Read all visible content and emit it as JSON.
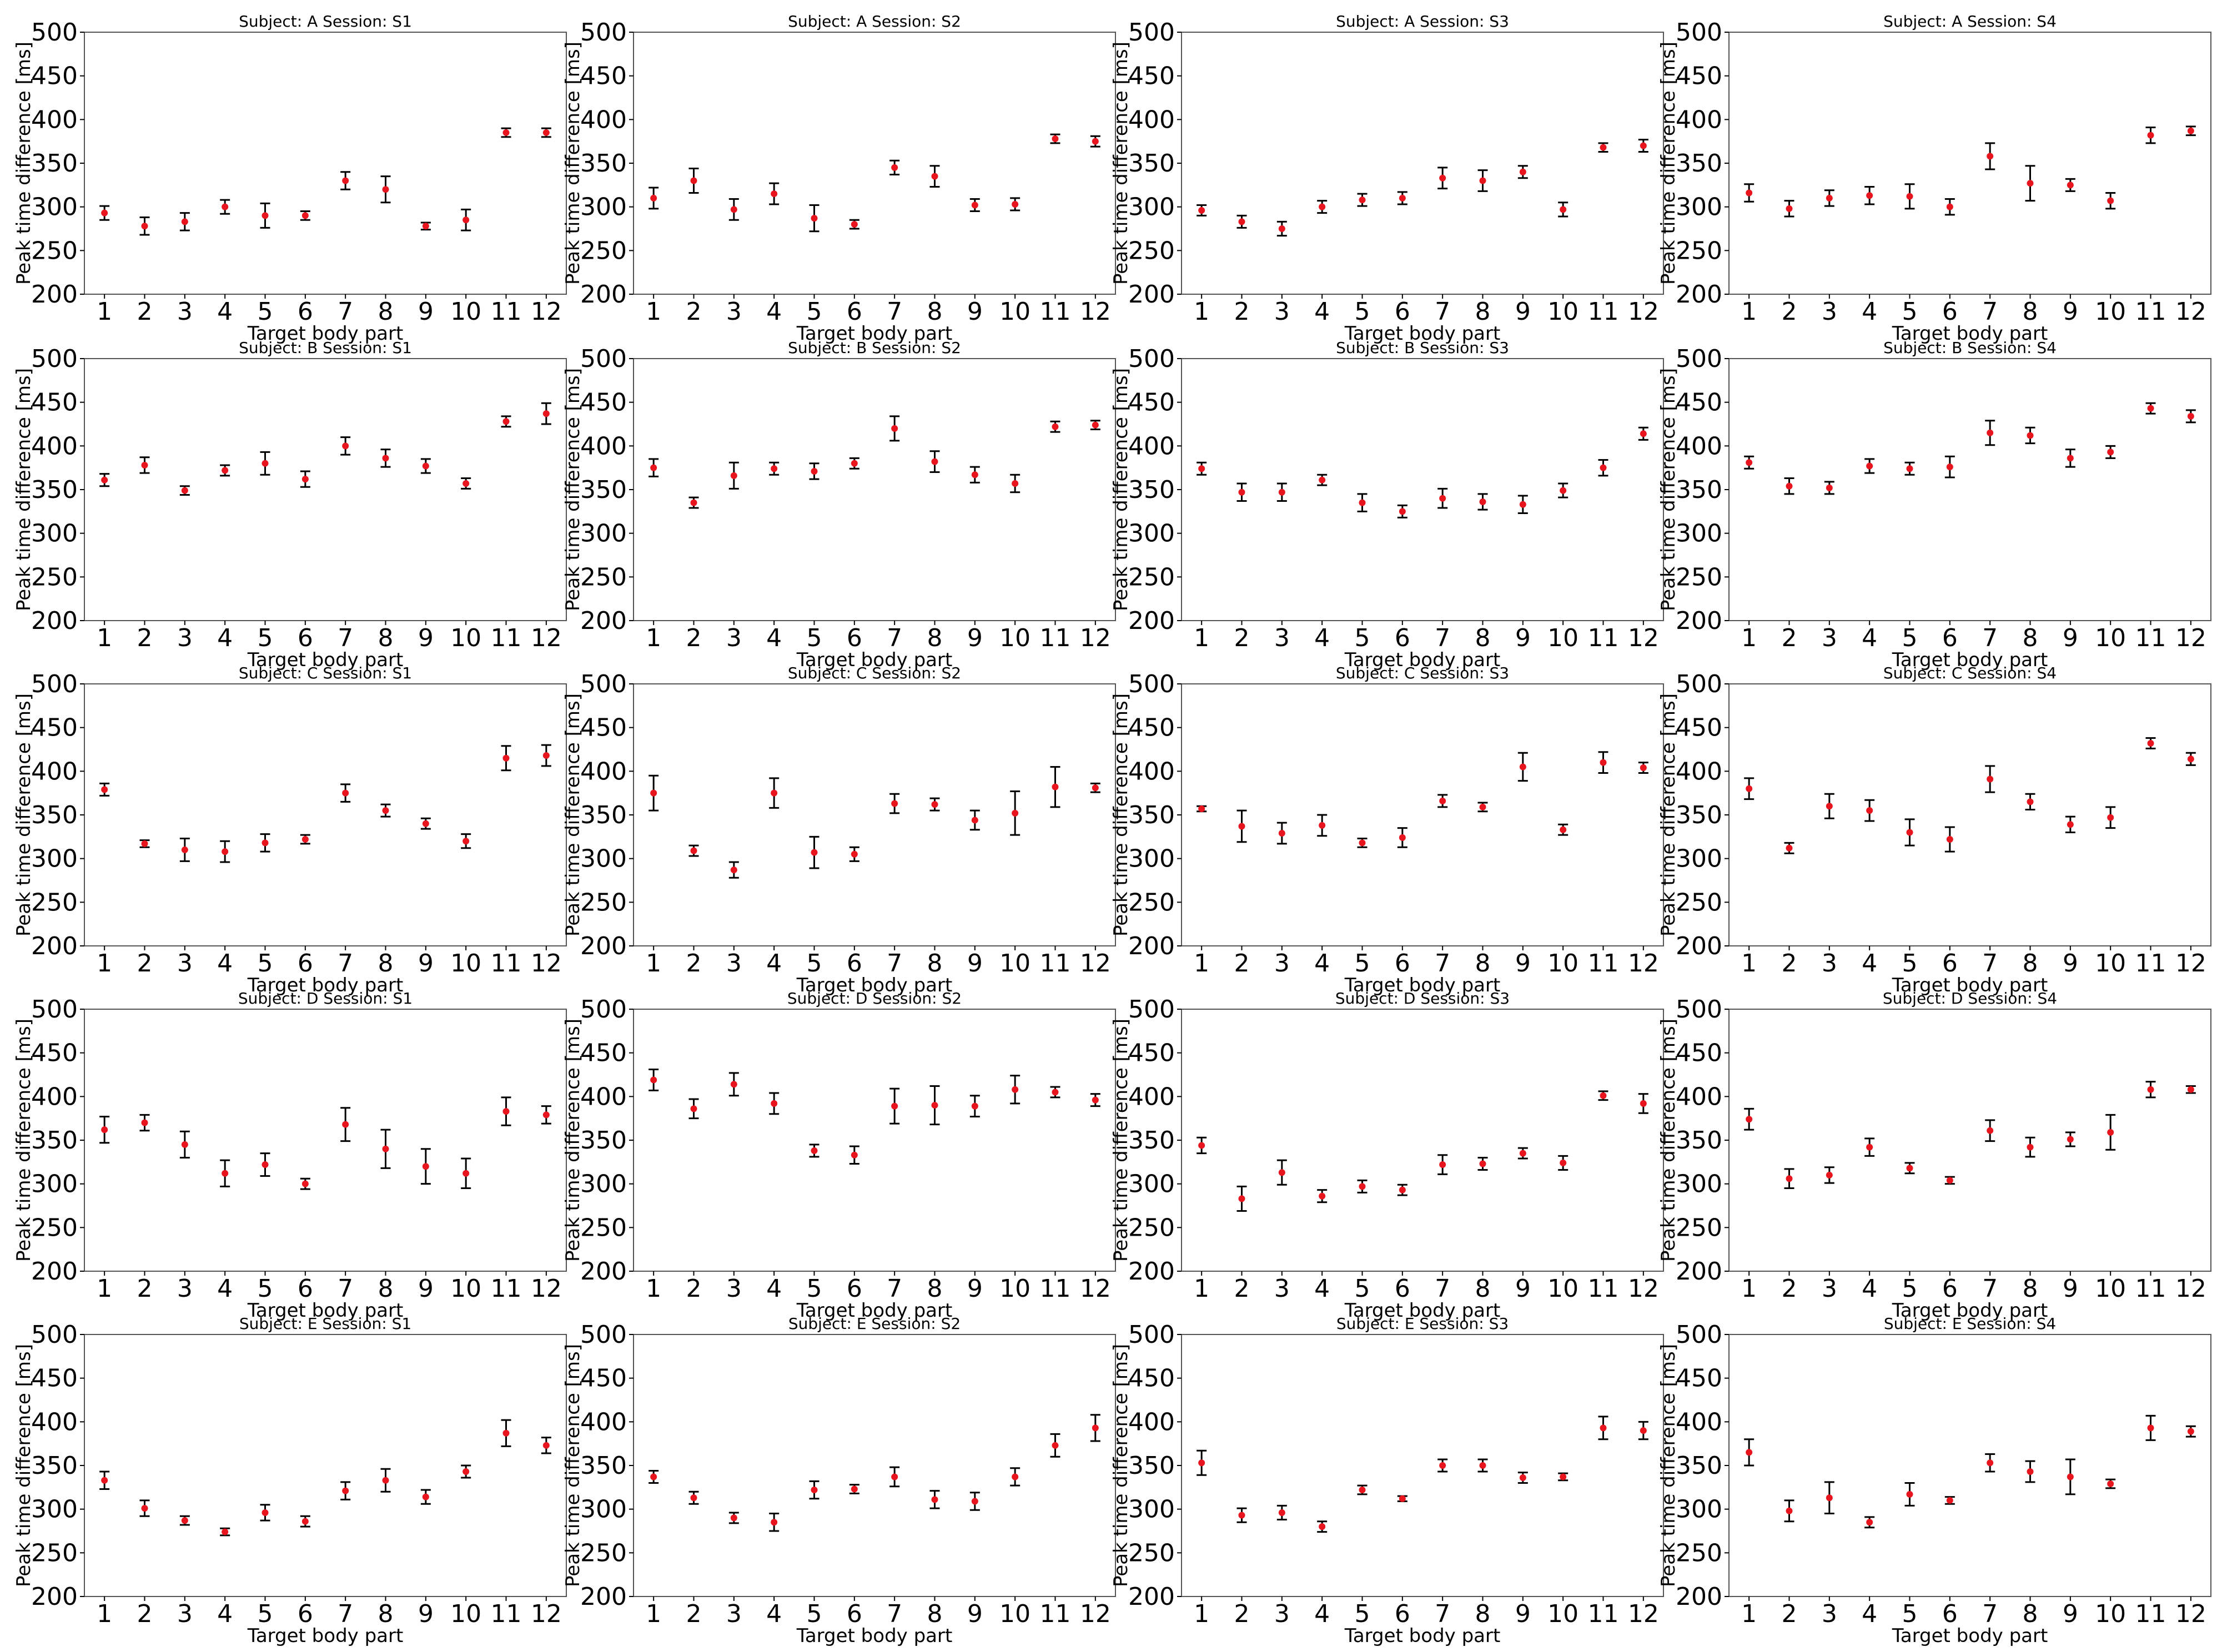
{
  "chart_data": {
    "type": "scatter",
    "x_label": "Target body part",
    "y_label": "Peak time difference [ms]",
    "x_ticks": [
      "1",
      "2",
      "3",
      "4",
      "5",
      "6",
      "7",
      "8",
      "9",
      "10",
      "11",
      "12"
    ],
    "y_ticks": [
      200,
      250,
      300,
      350,
      400,
      450,
      500
    ],
    "y_lim": [
      200,
      500
    ],
    "title_format": "Subject: {subject}  Session: {session}",
    "marker_color": "#e8141e",
    "errorbar_color": "#000000",
    "panels": [
      {
        "subject": "A",
        "session": "S1",
        "values": [
          293,
          278,
          283,
          300,
          290,
          290,
          330,
          320,
          278,
          285,
          385,
          385
        ],
        "errors": [
          8,
          10,
          10,
          8,
          14,
          5,
          10,
          15,
          4,
          12,
          5,
          5
        ]
      },
      {
        "subject": "A",
        "session": "S2",
        "values": [
          310,
          330,
          297,
          315,
          287,
          280,
          345,
          335,
          302,
          303,
          378,
          375
        ],
        "errors": [
          12,
          14,
          12,
          12,
          15,
          5,
          8,
          12,
          7,
          7,
          5,
          6
        ]
      },
      {
        "subject": "A",
        "session": "S3",
        "values": [
          296,
          283,
          275,
          300,
          308,
          310,
          333,
          330,
          340,
          297,
          368,
          370
        ],
        "errors": [
          6,
          7,
          8,
          7,
          7,
          7,
          12,
          12,
          7,
          8,
          5,
          7
        ]
      },
      {
        "subject": "A",
        "session": "S4",
        "values": [
          316,
          298,
          310,
          313,
          312,
          300,
          358,
          327,
          325,
          307,
          382,
          387
        ],
        "errors": [
          10,
          9,
          9,
          10,
          14,
          9,
          15,
          20,
          7,
          9,
          9,
          5
        ]
      },
      {
        "subject": "B",
        "session": "S1",
        "values": [
          361,
          378,
          349,
          372,
          380,
          362,
          400,
          386,
          377,
          357,
          428,
          437
        ],
        "errors": [
          7,
          9,
          5,
          6,
          13,
          9,
          10,
          10,
          8,
          6,
          6,
          12
        ]
      },
      {
        "subject": "B",
        "session": "S2",
        "values": [
          375,
          335,
          366,
          374,
          371,
          380,
          420,
          382,
          367,
          357,
          422,
          424
        ],
        "errors": [
          10,
          6,
          15,
          7,
          9,
          6,
          14,
          12,
          9,
          10,
          6,
          5
        ]
      },
      {
        "subject": "B",
        "session": "S3",
        "values": [
          374,
          347,
          347,
          361,
          335,
          325,
          340,
          336,
          333,
          349,
          375,
          414
        ],
        "errors": [
          7,
          10,
          10,
          6,
          10,
          7,
          11,
          9,
          10,
          8,
          9,
          7
        ]
      },
      {
        "subject": "B",
        "session": "S4",
        "values": [
          381,
          354,
          352,
          377,
          374,
          376,
          415,
          412,
          386,
          393,
          443,
          434
        ],
        "errors": [
          7,
          9,
          7,
          8,
          7,
          12,
          14,
          9,
          10,
          7,
          6,
          7
        ]
      },
      {
        "subject": "C",
        "session": "S1",
        "values": [
          379,
          317,
          310,
          308,
          318,
          322,
          375,
          355,
          340,
          320,
          415,
          418
        ],
        "errors": [
          7,
          4,
          13,
          12,
          10,
          5,
          10,
          7,
          6,
          8,
          14,
          12
        ]
      },
      {
        "subject": "C",
        "session": "S2",
        "values": [
          375,
          309,
          287,
          375,
          307,
          305,
          363,
          362,
          344,
          352,
          382,
          381
        ],
        "errors": [
          20,
          6,
          9,
          17,
          18,
          8,
          11,
          7,
          11,
          25,
          23,
          5
        ]
      },
      {
        "subject": "C",
        "session": "S3",
        "values": [
          357,
          337,
          329,
          338,
          318,
          324,
          366,
          359,
          405,
          333,
          410,
          404
        ],
        "errors": [
          3,
          18,
          12,
          12,
          5,
          11,
          7,
          5,
          16,
          6,
          12,
          6
        ]
      },
      {
        "subject": "C",
        "session": "S4",
        "values": [
          380,
          312,
          360,
          355,
          330,
          322,
          391,
          365,
          339,
          347,
          432,
          414
        ],
        "errors": [
          12,
          6,
          14,
          12,
          15,
          14,
          15,
          9,
          9,
          12,
          6,
          7
        ]
      },
      {
        "subject": "D",
        "session": "S1",
        "values": [
          362,
          370,
          345,
          312,
          322,
          300,
          368,
          340,
          320,
          312,
          383,
          379
        ],
        "errors": [
          15,
          9,
          15,
          15,
          13,
          6,
          19,
          22,
          20,
          17,
          16,
          10
        ]
      },
      {
        "subject": "D",
        "session": "S2",
        "values": [
          419,
          386,
          414,
          392,
          338,
          333,
          389,
          390,
          389,
          408,
          405,
          396
        ],
        "errors": [
          12,
          11,
          13,
          12,
          7,
          10,
          20,
          22,
          12,
          16,
          6,
          7
        ]
      },
      {
        "subject": "D",
        "session": "S3",
        "values": [
          344,
          283,
          313,
          286,
          297,
          293,
          322,
          323,
          335,
          324,
          401,
          392
        ],
        "errors": [
          9,
          14,
          14,
          7,
          7,
          6,
          11,
          7,
          6,
          8,
          5,
          11
        ]
      },
      {
        "subject": "D",
        "session": "S4",
        "values": [
          374,
          306,
          310,
          342,
          318,
          304,
          361,
          342,
          351,
          359,
          408,
          408
        ],
        "errors": [
          12,
          11,
          9,
          10,
          6,
          4,
          12,
          11,
          8,
          20,
          9,
          4
        ]
      },
      {
        "subject": "E",
        "session": "S1",
        "values": [
          333,
          301,
          287,
          274,
          296,
          286,
          321,
          333,
          314,
          343,
          387,
          373
        ],
        "errors": [
          10,
          9,
          5,
          4,
          9,
          6,
          10,
          13,
          8,
          7,
          15,
          9
        ]
      },
      {
        "subject": "E",
        "session": "S2",
        "values": [
          337,
          313,
          290,
          285,
          322,
          323,
          337,
          311,
          309,
          337,
          373,
          393
        ],
        "errors": [
          7,
          7,
          6,
          10,
          10,
          5,
          11,
          10,
          10,
          10,
          13,
          15
        ]
      },
      {
        "subject": "E",
        "session": "S3",
        "values": [
          353,
          293,
          296,
          280,
          322,
          312,
          350,
          350,
          336,
          337,
          393,
          390
        ],
        "errors": [
          14,
          8,
          8,
          6,
          5,
          3,
          7,
          7,
          6,
          4,
          13,
          10
        ]
      },
      {
        "subject": "E",
        "session": "S4",
        "values": [
          365,
          298,
          313,
          285,
          317,
          310,
          353,
          343,
          337,
          329,
          393,
          389
        ],
        "errors": [
          15,
          12,
          18,
          6,
          13,
          4,
          10,
          12,
          20,
          5,
          14,
          6
        ]
      }
    ]
  }
}
